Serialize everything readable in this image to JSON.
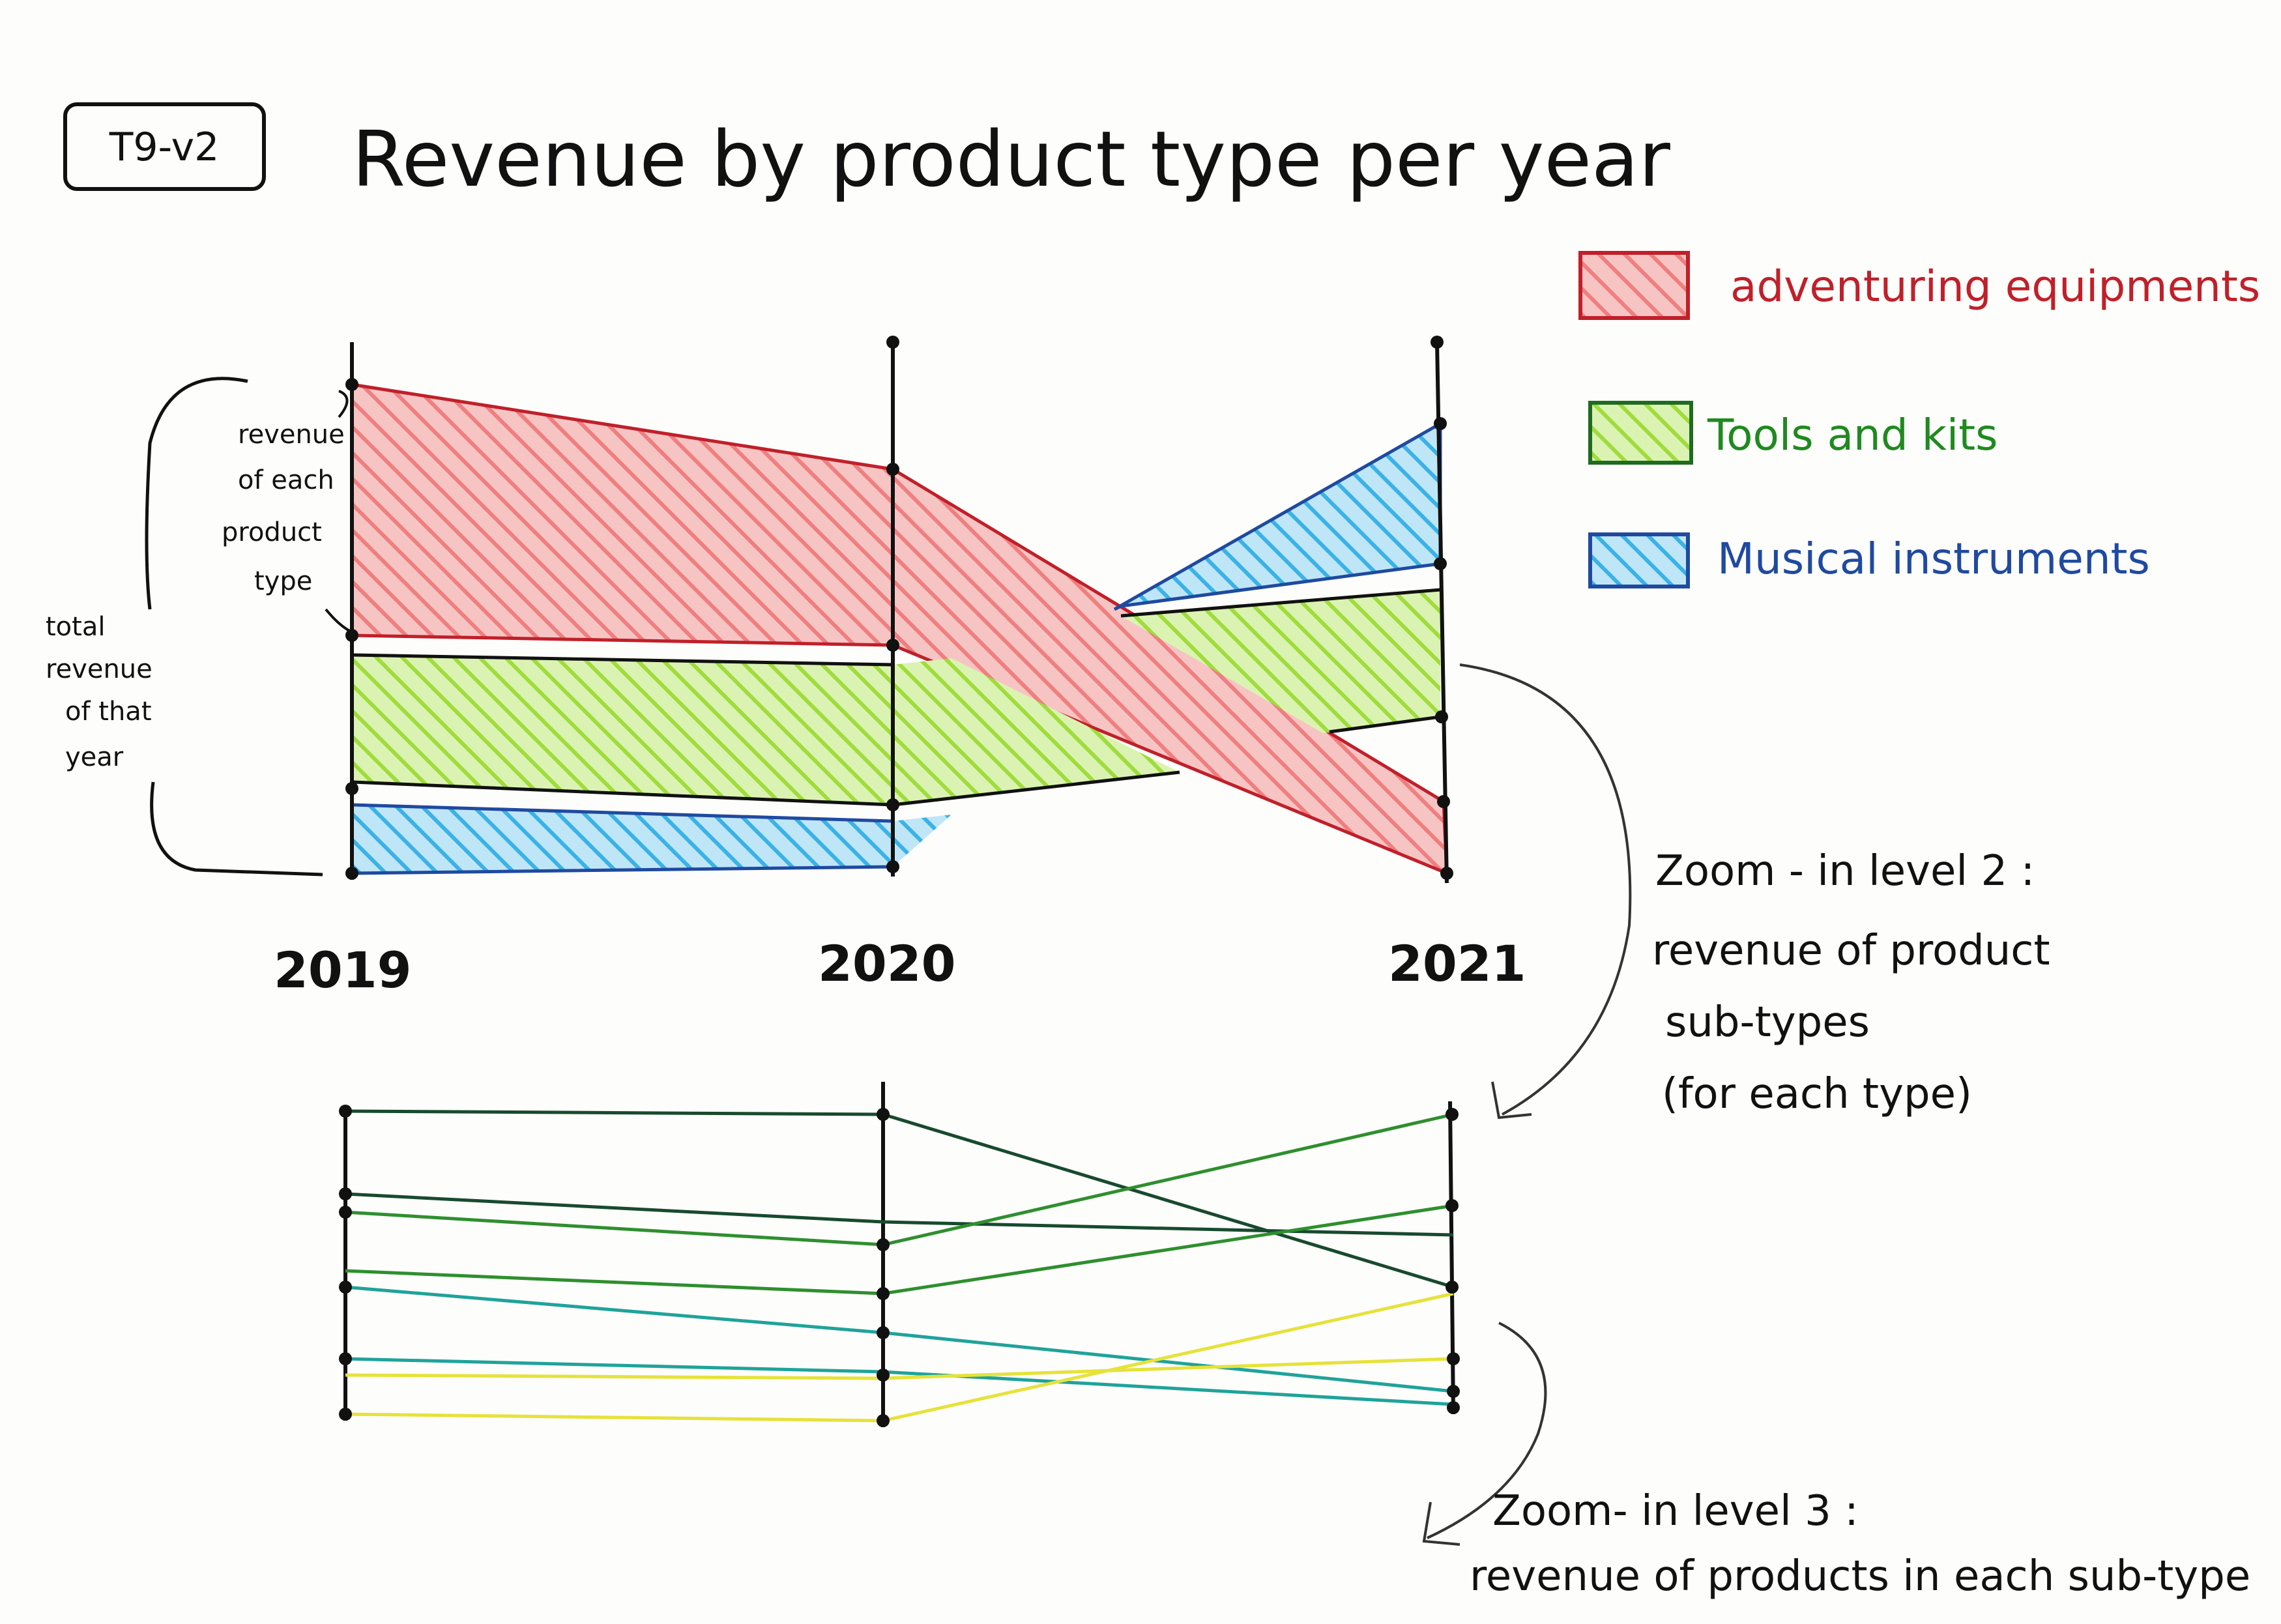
{
  "tag": "T9-v2",
  "title": "Revenue by product type per year",
  "legend": [
    {
      "label": "adventuring equipments",
      "fill": "#f08c8c",
      "stroke": "#c0202a",
      "text_color": "#c0202a"
    },
    {
      "label": "Tools and kits",
      "fill": "#a6e24a",
      "stroke": "#1f6b1f",
      "text_color": "#1f8a1f"
    },
    {
      "label": "Musical instruments",
      "fill": "#4db8e8",
      "stroke": "#1f4aa0",
      "text_color": "#1f4aa0"
    }
  ],
  "annotations": {
    "revenue_each_type": [
      "revenue",
      "of each",
      "product",
      "type"
    ],
    "total_revenue": [
      "total",
      "revenue",
      "of that",
      "year"
    ]
  },
  "years": [
    "2019",
    "2020",
    "2021"
  ],
  "zoom2": [
    "Zoom - in level 2 :",
    "revenue of product",
    "sub-types",
    "(for each type)"
  ],
  "zoom3": [
    "Zoom- in level 3 :",
    "revenue of products in each sub-type"
  ],
  "colors": {
    "ink": "#111111",
    "sub_dark": "#184a2e",
    "sub_green": "#2e8f2e",
    "sub_teal": "#1fa39a",
    "sub_yellow": "#e6e23a"
  }
}
